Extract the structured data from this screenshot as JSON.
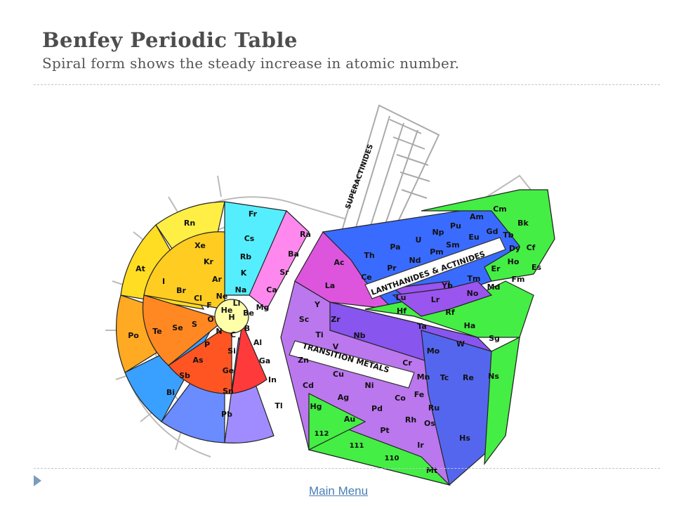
{
  "title": "Benfey Periodic Table",
  "subtitle": "Spiral form shows the steady increase in atomic number.",
  "nav": {
    "main_menu": "Main Menu"
  },
  "diagram": {
    "band_labels": {
      "superactinides": "SUPERACTINIDES",
      "lanthanides_actinides": "LANTHANIDES & ACTINIDES",
      "transition_metals": "TRANSITION METALS"
    },
    "colors": {
      "alkali": "#66f0ff",
      "alkaline_earth": "#ff88ee",
      "boron_group": "#ff3a3a",
      "carbon_group": "#ff7722",
      "pnictogens": "#ff9c1a",
      "chalcogens": "#ffbb22",
      "halogens": "#ffdd22",
      "noble_gases": "#ffff44",
      "heavy_pblock_a": "#5aa6ff",
      "heavy_pblock_b": "#9a8cff",
      "transition_magenta": "#e060e0",
      "transition_purple": "#8855ee",
      "transition_blue": "#5566ee",
      "transition_green": "#44ee44",
      "lanthanide_blue": "#3a6bff",
      "hydrogen": "#ffffcc"
    },
    "elements": [
      {
        "symbol": "H",
        "color": "#ffffcc"
      },
      {
        "symbol": "He",
        "color": "#ffffcc"
      },
      {
        "symbol": "Li",
        "color": "#66f0ff"
      },
      {
        "symbol": "Be",
        "color": "#ff88ee"
      },
      {
        "symbol": "B",
        "color": "#ff3a3a"
      },
      {
        "symbol": "C",
        "color": "#ff4a2a"
      },
      {
        "symbol": "N",
        "color": "#ff6a1a"
      },
      {
        "symbol": "O",
        "color": "#ff9c1a"
      },
      {
        "symbol": "F",
        "color": "#ffcc22"
      },
      {
        "symbol": "Ne",
        "color": "#ffee44"
      },
      {
        "symbol": "Na",
        "color": "#66f0ff"
      },
      {
        "symbol": "Mg",
        "color": "#ff88ee"
      },
      {
        "symbol": "Al",
        "color": "#ee66ee"
      },
      {
        "symbol": "Si",
        "color": "#ff3a3a"
      },
      {
        "symbol": "P",
        "color": "#ff6a1a"
      },
      {
        "symbol": "S",
        "color": "#ff9c1a"
      },
      {
        "symbol": "Cl",
        "color": "#ffcc22"
      },
      {
        "symbol": "Ar",
        "color": "#ffee44"
      },
      {
        "symbol": "K",
        "color": "#66f0ff"
      },
      {
        "symbol": "Ca",
        "color": "#ff88ee"
      },
      {
        "symbol": "Ga",
        "color": "#cc88ff"
      },
      {
        "symbol": "Ge",
        "color": "#5aa6ff"
      },
      {
        "symbol": "As",
        "color": "#ff6a1a"
      },
      {
        "symbol": "Se",
        "color": "#ff9c1a"
      },
      {
        "symbol": "Br",
        "color": "#ffcc22"
      },
      {
        "symbol": "Kr",
        "color": "#ffee44"
      },
      {
        "symbol": "Rb",
        "color": "#66f0ff"
      },
      {
        "symbol": "Sr",
        "color": "#ff88ee"
      },
      {
        "symbol": "In",
        "color": "#b38cff"
      },
      {
        "symbol": "Sn",
        "color": "#8a9cff"
      },
      {
        "symbol": "Sb",
        "color": "#5aa6ff"
      },
      {
        "symbol": "Te",
        "color": "#ff9c1a"
      },
      {
        "symbol": "I",
        "color": "#ffcc22"
      },
      {
        "symbol": "Xe",
        "color": "#ffee44"
      },
      {
        "symbol": "Cs",
        "color": "#66f0ff"
      },
      {
        "symbol": "Ba",
        "color": "#ff88ee"
      },
      {
        "symbol": "Tl",
        "color": "#b38cff"
      },
      {
        "symbol": "Pb",
        "color": "#9a8cff"
      },
      {
        "symbol": "Bi",
        "color": "#5aa6ff"
      },
      {
        "symbol": "Po",
        "color": "#4aa2ff"
      },
      {
        "symbol": "At",
        "color": "#ffbb22"
      },
      {
        "symbol": "Rn",
        "color": "#ffee44"
      },
      {
        "symbol": "Fr",
        "color": "#66f0ff"
      },
      {
        "symbol": "Ra",
        "color": "#ff88ee"
      },
      {
        "symbol": "Sc",
        "color": "#e060e0"
      },
      {
        "symbol": "Y",
        "color": "#e060e0"
      },
      {
        "symbol": "La",
        "color": "#ff66ee"
      },
      {
        "symbol": "Ac",
        "color": "#ff66ee"
      },
      {
        "symbol": "Ti",
        "color": "#cc55dd"
      },
      {
        "symbol": "Zr",
        "color": "#cc55dd"
      },
      {
        "symbol": "Hf",
        "color": "#9955ee"
      },
      {
        "symbol": "Rf",
        "color": "#44ee44"
      },
      {
        "symbol": "V",
        "color": "#aa55dd"
      },
      {
        "symbol": "Nb",
        "color": "#aa55dd"
      },
      {
        "symbol": "Ta",
        "color": "#9955ee"
      },
      {
        "symbol": "Ha",
        "color": "#44ee44"
      },
      {
        "symbol": "Cr",
        "color": "#8855ee"
      },
      {
        "symbol": "Mo",
        "color": "#8855ee"
      },
      {
        "symbol": "W",
        "color": "#7755ee"
      },
      {
        "symbol": "Sg",
        "color": "#44ee44"
      },
      {
        "symbol": "Mn",
        "color": "#6655ee"
      },
      {
        "symbol": "Tc",
        "color": "#6655ee"
      },
      {
        "symbol": "Re",
        "color": "#5566ee"
      },
      {
        "symbol": "Ns",
        "color": "#44ee44"
      },
      {
        "symbol": "Fe",
        "color": "#5566ee"
      },
      {
        "symbol": "Ru",
        "color": "#5566ee"
      },
      {
        "symbol": "Os",
        "color": "#5566ee"
      },
      {
        "symbol": "Hs",
        "color": "#44ee44"
      },
      {
        "symbol": "Co",
        "color": "#7766ee"
      },
      {
        "symbol": "Rh",
        "color": "#7766ee"
      },
      {
        "symbol": "Ir",
        "color": "#7766ee"
      },
      {
        "symbol": "Mt",
        "color": "#44ee44"
      },
      {
        "symbol": "Ni",
        "color": "#9966ee"
      },
      {
        "symbol": "Pd",
        "color": "#9966ee"
      },
      {
        "symbol": "Pt",
        "color": "#9966ee"
      },
      {
        "symbol": "110",
        "color": "#44ee44"
      },
      {
        "symbol": "Cu",
        "color": "#aa77ee"
      },
      {
        "symbol": "Ag",
        "color": "#aa77ee"
      },
      {
        "symbol": "Au",
        "color": "#aa77ee"
      },
      {
        "symbol": "111",
        "color": "#44ee44"
      },
      {
        "symbol": "Zn",
        "color": "#bb88ee"
      },
      {
        "symbol": "Cd",
        "color": "#bb88ee"
      },
      {
        "symbol": "Hg",
        "color": "#bb88ee"
      },
      {
        "symbol": "112",
        "color": "#44ee44"
      },
      {
        "symbol": "Lu",
        "color": "#9955ee"
      },
      {
        "symbol": "Lr",
        "color": "#44ee44"
      },
      {
        "symbol": "Ce",
        "color": "#3a6bff"
      },
      {
        "symbol": "Th",
        "color": "#3a6bff"
      },
      {
        "symbol": "Pr",
        "color": "#3a6bff"
      },
      {
        "symbol": "Pa",
        "color": "#3a6bff"
      },
      {
        "symbol": "Nd",
        "color": "#3a6bff"
      },
      {
        "symbol": "U",
        "color": "#3a6bff"
      },
      {
        "symbol": "Pm",
        "color": "#3a6bff"
      },
      {
        "symbol": "Np",
        "color": "#44ee44"
      },
      {
        "symbol": "Sm",
        "color": "#3a6bff"
      },
      {
        "symbol": "Pu",
        "color": "#44ee44"
      },
      {
        "symbol": "Eu",
        "color": "#3a6bff"
      },
      {
        "symbol": "Am",
        "color": "#44ee44"
      },
      {
        "symbol": "Gd",
        "color": "#3a6bff"
      },
      {
        "symbol": "Cm",
        "color": "#44ee44"
      },
      {
        "symbol": "Tb",
        "color": "#3a6bff"
      },
      {
        "symbol": "Bk",
        "color": "#44ee44"
      },
      {
        "symbol": "Dy",
        "color": "#3a6bff"
      },
      {
        "symbol": "Cf",
        "color": "#44ee44"
      },
      {
        "symbol": "Ho",
        "color": "#3a6bff"
      },
      {
        "symbol": "Es",
        "color": "#44ee44"
      },
      {
        "symbol": "Er",
        "color": "#3a6bff"
      },
      {
        "symbol": "Fm",
        "color": "#44ee44"
      },
      {
        "symbol": "Tm",
        "color": "#3a6bff"
      },
      {
        "symbol": "Md",
        "color": "#44ee44"
      },
      {
        "symbol": "Yb",
        "color": "#3a6bff"
      },
      {
        "symbol": "No",
        "color": "#44ee44"
      }
    ]
  }
}
